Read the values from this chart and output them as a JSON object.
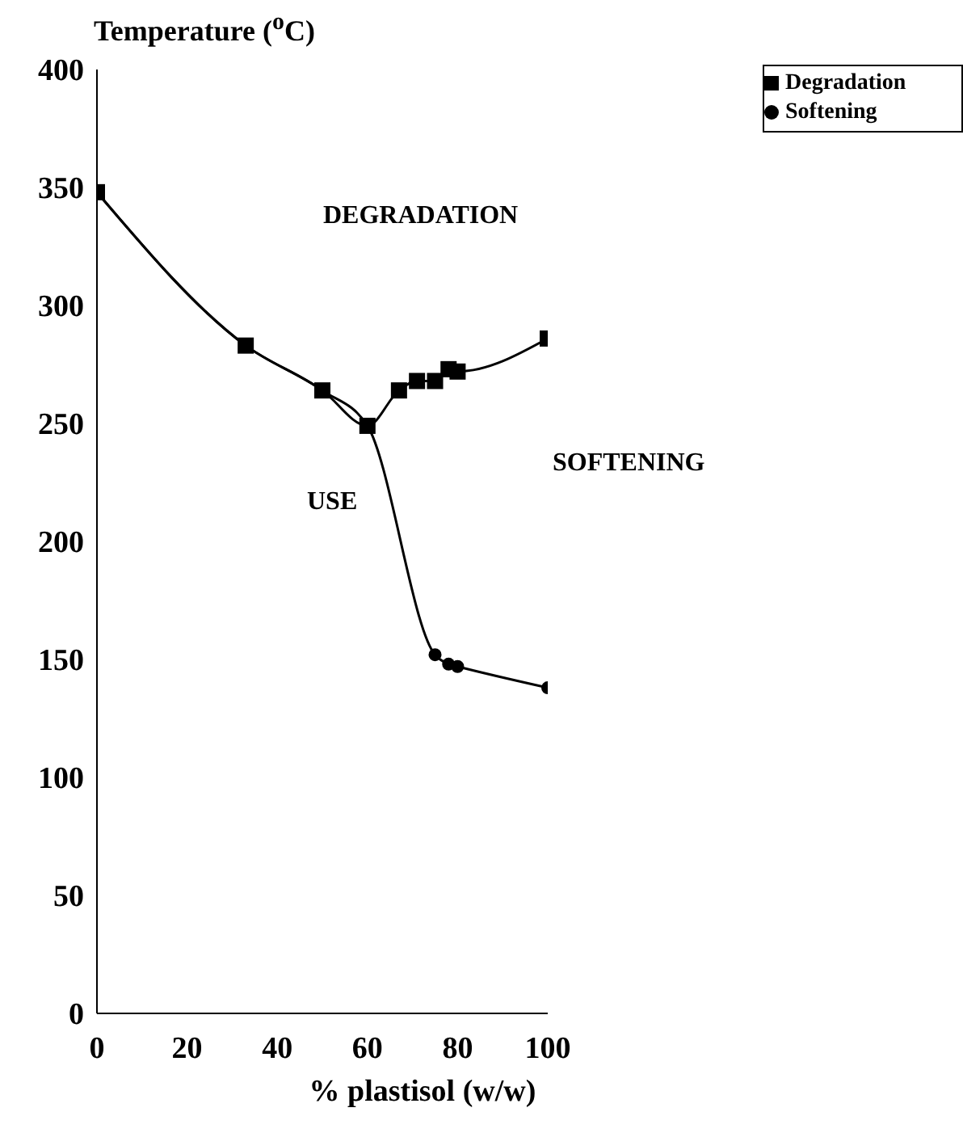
{
  "chart_data": {
    "type": "line",
    "ylabel": "Temperature ($^{o}$C)",
    "xlabel": "% plastisol (w/w)",
    "annotations": [
      "DEGRADATION",
      "USE",
      "SOFTENING"
    ],
    "series": [
      {
        "name": "Degradation",
        "color": "#000000",
        "marker": "square",
        "x": [
          0,
          33,
          50,
          60,
          67,
          71,
          75,
          78,
          80,
          100
        ],
        "values": [
          348,
          283,
          264,
          249,
          264,
          268,
          268,
          273,
          272,
          286
        ]
      },
      {
        "name": "Softening",
        "color": "#000000",
        "marker": "circle",
        "x": [
          0,
          33,
          50,
          60,
          75,
          78,
          80,
          100
        ],
        "values": [
          348,
          283,
          264,
          249,
          152,
          148,
          147,
          138
        ]
      }
    ],
    "xlim": [
      0,
      100
    ],
    "xticks": [
      0,
      20,
      40,
      60,
      80,
      100
    ],
    "ylim": [
      0,
      400
    ],
    "yticks": [
      0,
      50,
      100,
      150,
      200,
      250,
      300,
      350,
      400
    ],
    "grid": false,
    "legend": "top right",
    "line_style": "solid"
  }
}
